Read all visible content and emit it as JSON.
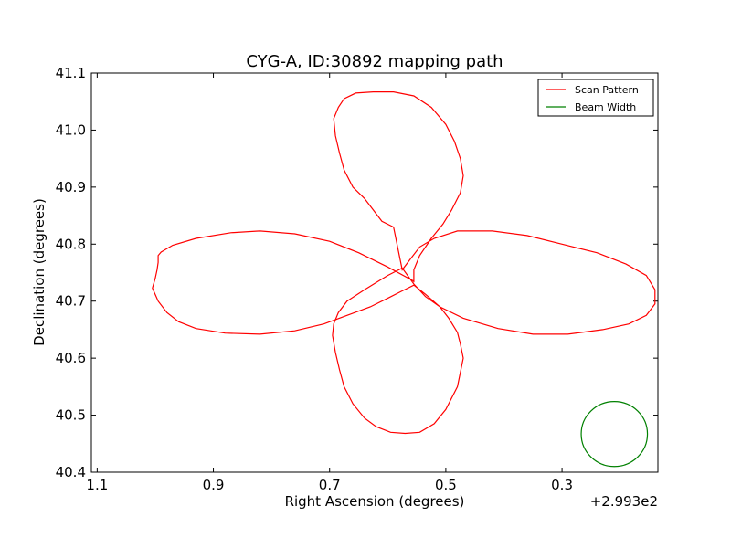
{
  "chart_data": {
    "type": "line",
    "title": "CYG-A, ID:30892 mapping path",
    "xlabel": "Right Ascension (degrees)",
    "ylabel": "Declination (degrees)",
    "x_offset_label": "+2.993e2",
    "x_inverted": true,
    "xlim": [
      1.11,
      0.135
    ],
    "ylim": [
      40.4,
      41.1
    ],
    "x_ticks": [
      1.1,
      0.9,
      0.7,
      0.5,
      0.3
    ],
    "x_tick_labels": [
      "1.1",
      "0.9",
      "0.7",
      "0.5",
      "0.3"
    ],
    "y_ticks": [
      40.4,
      40.5,
      40.6,
      40.7,
      40.8,
      40.9,
      41.0,
      41.1
    ],
    "y_tick_labels": [
      "40.4",
      "40.5",
      "40.6",
      "40.7",
      "40.8",
      "40.9",
      "41.0",
      "41.1"
    ],
    "grid": false,
    "legend_position": "top-right",
    "series": [
      {
        "name": "Scan Pattern",
        "color": "#ff0000",
        "x": [
          0.555,
          0.6,
          0.65,
          0.7,
          0.76,
          0.82,
          0.87,
          0.93,
          0.97,
          0.99,
          0.995,
          0.995,
          0.997,
          1.0,
          1.005,
          0.995,
          0.98,
          0.96,
          0.93,
          0.88,
          0.82,
          0.76,
          0.71,
          0.67,
          0.63,
          0.6,
          0.575,
          0.555,
          0.535,
          0.51,
          0.495,
          0.48,
          0.475,
          0.47,
          0.475,
          0.48,
          0.5,
          0.52,
          0.545,
          0.57,
          0.595,
          0.62,
          0.64,
          0.66,
          0.675,
          0.683,
          0.69,
          0.695,
          0.693,
          0.685,
          0.67,
          0.64,
          0.6,
          0.575,
          0.555,
          0.535,
          0.51,
          0.47,
          0.41,
          0.35,
          0.29,
          0.23,
          0.185,
          0.155,
          0.14,
          0.14,
          0.155,
          0.19,
          0.24,
          0.3,
          0.36,
          0.42,
          0.48,
          0.52,
          0.545,
          0.56,
          0.575,
          0.59,
          0.61,
          0.625,
          0.64,
          0.66,
          0.675,
          0.683,
          0.69,
          0.693,
          0.685,
          0.675,
          0.655,
          0.625,
          0.59,
          0.555,
          0.525,
          0.5,
          0.485,
          0.475,
          0.47,
          0.475,
          0.49,
          0.505,
          0.525,
          0.545,
          0.555,
          0.555
        ],
        "y": [
          40.735,
          40.76,
          40.785,
          40.805,
          40.818,
          40.823,
          40.82,
          40.81,
          40.798,
          40.786,
          40.78,
          40.768,
          40.755,
          40.74,
          40.723,
          40.7,
          40.68,
          40.664,
          40.652,
          40.644,
          40.642,
          40.648,
          40.66,
          40.675,
          40.69,
          40.705,
          40.718,
          40.728,
          40.712,
          40.69,
          40.67,
          40.645,
          40.625,
          40.6,
          40.575,
          40.55,
          40.51,
          40.485,
          40.47,
          40.468,
          40.47,
          40.48,
          40.495,
          40.52,
          40.55,
          40.58,
          40.61,
          40.64,
          40.66,
          40.68,
          40.7,
          40.72,
          40.745,
          40.758,
          40.73,
          40.708,
          40.69,
          40.67,
          40.652,
          40.642,
          40.642,
          40.65,
          40.66,
          40.675,
          40.695,
          40.72,
          40.745,
          40.765,
          40.785,
          40.8,
          40.815,
          40.823,
          40.823,
          40.81,
          40.795,
          40.775,
          40.755,
          40.83,
          40.84,
          40.86,
          40.88,
          40.9,
          40.93,
          40.96,
          40.99,
          41.02,
          41.04,
          41.055,
          41.065,
          41.067,
          41.067,
          41.06,
          41.04,
          41.01,
          40.98,
          40.95,
          40.92,
          40.89,
          40.86,
          40.835,
          40.81,
          40.78,
          40.755,
          40.733
        ]
      },
      {
        "name": "Beam Width",
        "color": "#008000",
        "shape": "circle",
        "center_x": 0.21,
        "center_y": 40.467,
        "radius_ra": 0.057,
        "radius_dec": 0.057
      }
    ]
  }
}
